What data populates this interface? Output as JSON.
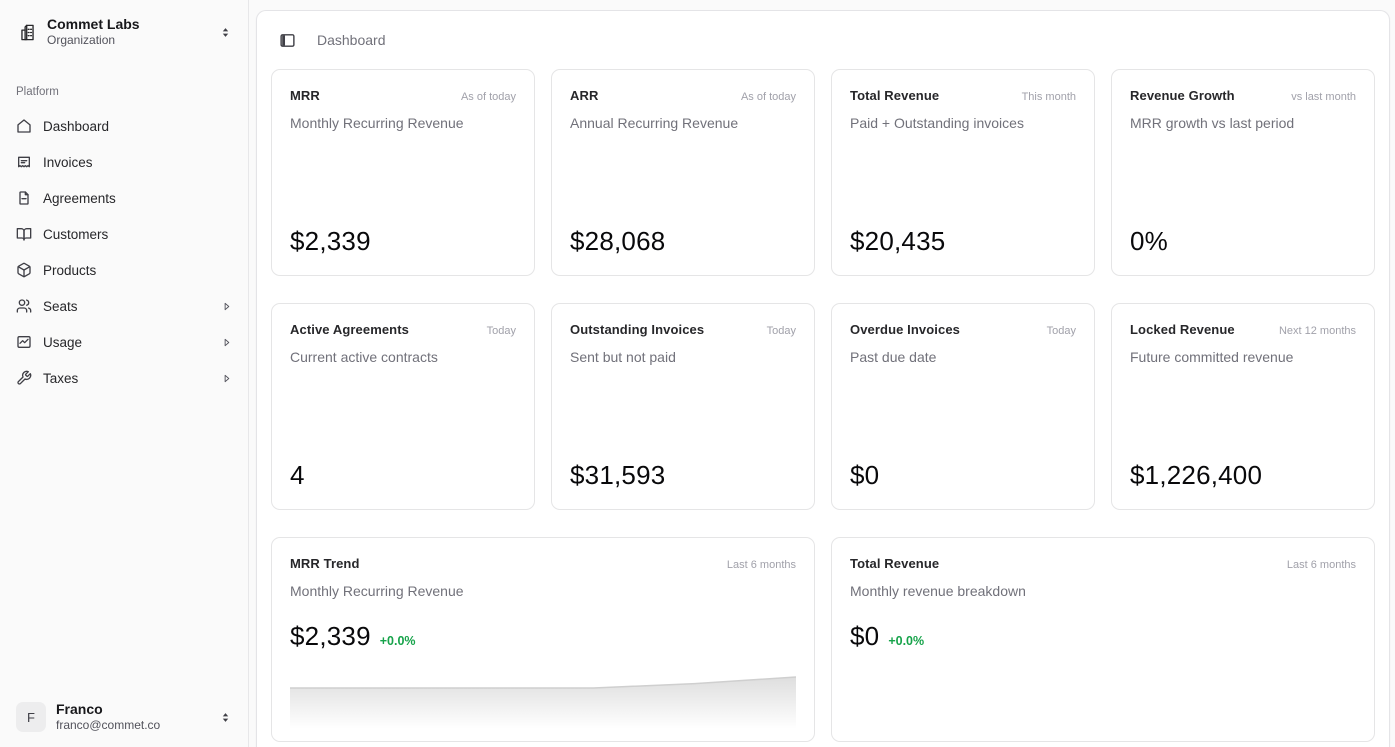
{
  "app": {
    "background": "#fafafa",
    "panel_background": "#ffffff",
    "border_color": "#e4e4e7",
    "accent_green": "#16a34a"
  },
  "sidebar": {
    "org": {
      "name": "Commet Labs",
      "type": "Organization",
      "icon": "building-icon"
    },
    "section_label": "Platform",
    "items": [
      {
        "label": "Dashboard",
        "icon": "home-icon",
        "has_submenu": false
      },
      {
        "label": "Invoices",
        "icon": "receipt-icon",
        "has_submenu": false
      },
      {
        "label": "Agreements",
        "icon": "file-icon",
        "has_submenu": false
      },
      {
        "label": "Customers",
        "icon": "book-open-icon",
        "has_submenu": false
      },
      {
        "label": "Products",
        "icon": "package-icon",
        "has_submenu": false
      },
      {
        "label": "Seats",
        "icon": "users-icon",
        "has_submenu": true
      },
      {
        "label": "Usage",
        "icon": "chart-icon",
        "has_submenu": true
      },
      {
        "label": "Taxes",
        "icon": "wrench-icon",
        "has_submenu": true
      }
    ],
    "user": {
      "initial": "F",
      "name": "Franco",
      "email": "franco@commet.co"
    }
  },
  "header": {
    "breadcrumb": "Dashboard"
  },
  "metric_cards": [
    {
      "title": "MRR",
      "badge": "As of today",
      "subtitle": "Monthly Recurring Revenue",
      "value": "$2,339"
    },
    {
      "title": "ARR",
      "badge": "As of today",
      "subtitle": "Annual Recurring Revenue",
      "value": "$28,068"
    },
    {
      "title": "Total Revenue",
      "badge": "This month",
      "subtitle": "Paid + Outstanding invoices",
      "value": "$20,435"
    },
    {
      "title": "Revenue Growth",
      "badge": "vs last month",
      "subtitle": "MRR growth vs last period",
      "value": "0%"
    },
    {
      "title": "Active Agreements",
      "badge": "Today",
      "subtitle": "Current active contracts",
      "value": "4"
    },
    {
      "title": "Outstanding Invoices",
      "badge": "Today",
      "subtitle": "Sent but not paid",
      "value": "$31,593"
    },
    {
      "title": "Overdue Invoices",
      "badge": "Today",
      "subtitle": "Past due date",
      "value": "$0"
    },
    {
      "title": "Locked Revenue",
      "badge": "Next 12 months",
      "subtitle": "Future committed revenue",
      "value": "$1,226,400"
    }
  ],
  "trend_cards": [
    {
      "title": "MRR Trend",
      "badge": "Last 6 months",
      "subtitle": "Monthly Recurring Revenue",
      "value": "$2,339",
      "delta": "+0.0%",
      "chart_data": {
        "type": "area",
        "values": [
          2257,
          2257,
          2257,
          2257,
          2290,
          2339
        ],
        "fill": "#dcdcdc",
        "line": "#cfcfcf"
      }
    },
    {
      "title": "Total Revenue",
      "badge": "Last 6 months",
      "subtitle": "Monthly revenue breakdown",
      "value": "$0",
      "delta": "+0.0%"
    }
  ]
}
